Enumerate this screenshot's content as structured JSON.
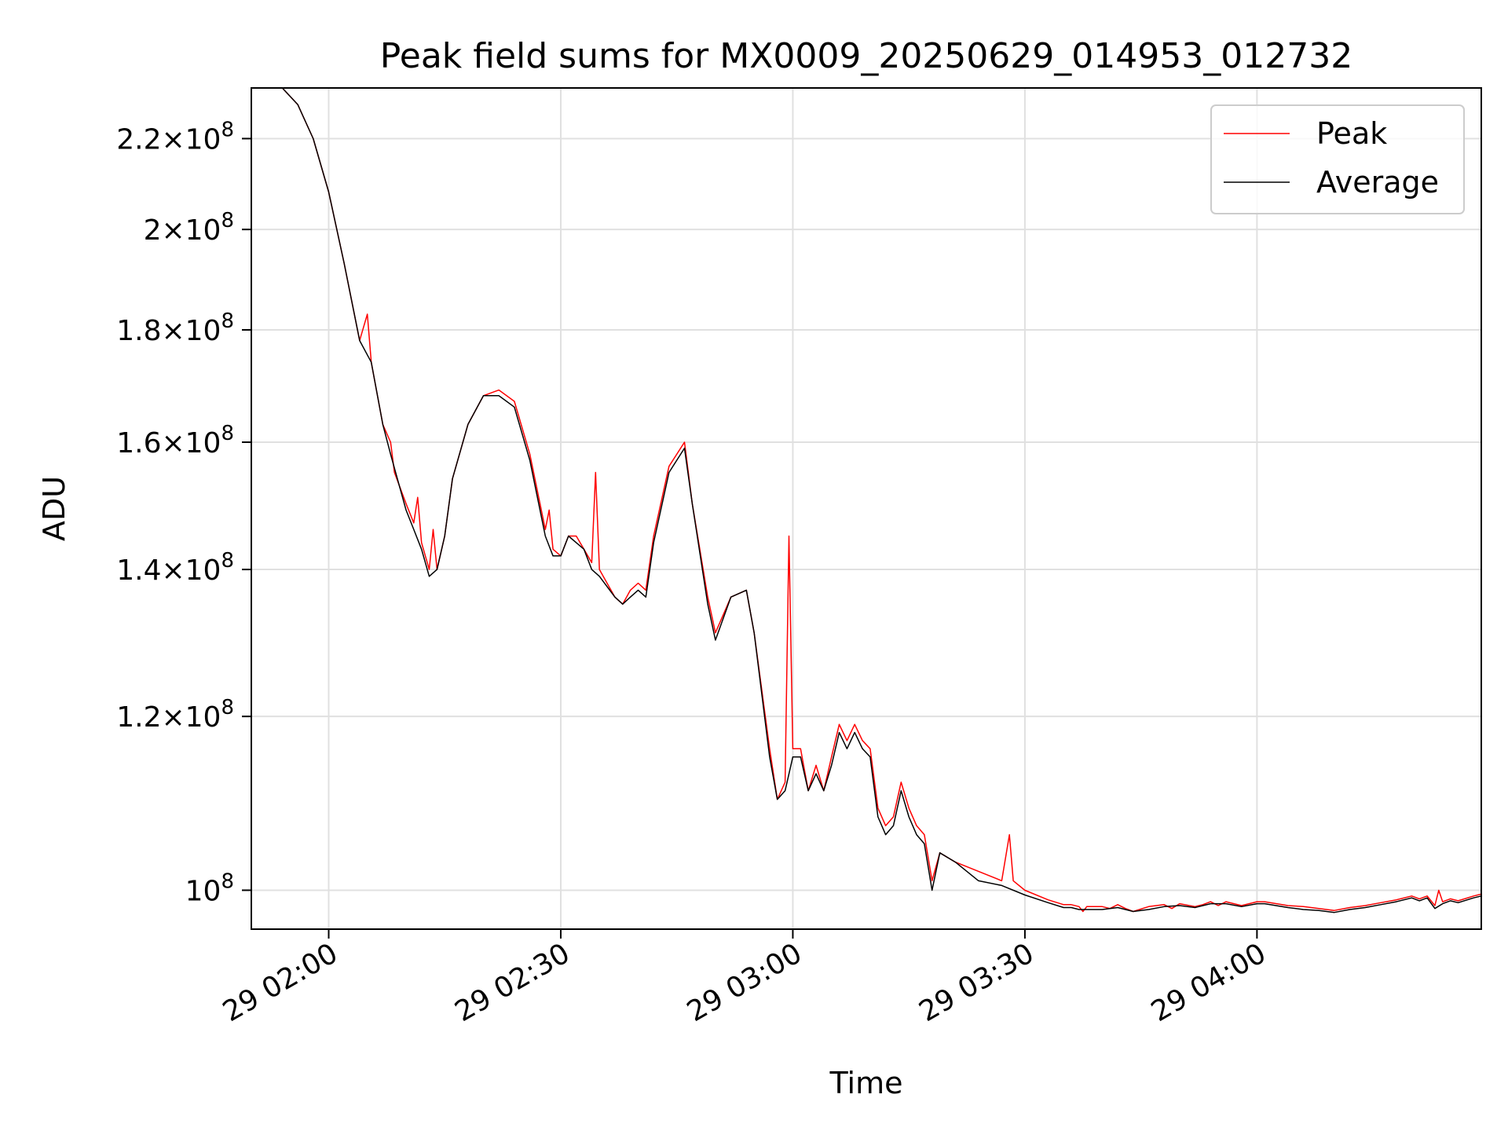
{
  "chart_data": {
    "type": "line",
    "title": "Peak field sums for MX0009_20250629_014953_012732",
    "xlabel": "Time",
    "ylabel": "ADU",
    "y_scale": "log",
    "ylim": [
      96000000,
      232000000
    ],
    "xlim": [
      "2025-06-29 01:50",
      "2025-06-29 04:29"
    ],
    "x_ticks": [
      {
        "x": "2025-06-29 02:00",
        "label": "29 02:00"
      },
      {
        "x": "2025-06-29 02:30",
        "label": "29 02:30"
      },
      {
        "x": "2025-06-29 03:00",
        "label": "29 03:00"
      },
      {
        "x": "2025-06-29 03:30",
        "label": "29 03:30"
      },
      {
        "x": "2025-06-29 04:00",
        "label": "29 04:00"
      }
    ],
    "y_ticks": [
      {
        "value": 100000000,
        "mantissa": "",
        "base": "10",
        "exp": "8"
      },
      {
        "value": 120000000,
        "mantissa": "1.2",
        "base": "10",
        "exp": "8"
      },
      {
        "value": 140000000,
        "mantissa": "1.4",
        "base": "10",
        "exp": "8"
      },
      {
        "value": 160000000,
        "mantissa": "1.6",
        "base": "10",
        "exp": "8"
      },
      {
        "value": 180000000,
        "mantissa": "1.8",
        "base": "10",
        "exp": "8"
      },
      {
        "value": 200000000,
        "mantissa": "2",
        "base": "10",
        "exp": "8"
      },
      {
        "value": 220000000,
        "mantissa": "2.2",
        "base": "10",
        "exp": "8"
      }
    ],
    "grid": true,
    "legend_position": "top-right",
    "series": [
      {
        "name": "Peak",
        "color": "#ff0000",
        "points": [
          [
            "2025-06-29 01:50",
            232000000
          ],
          [
            "2025-06-29 01:54",
            232000000
          ],
          [
            "2025-06-29 01:56",
            228000000
          ],
          [
            "2025-06-29 01:58",
            220000000
          ],
          [
            "2025-06-29 02:00",
            208000000
          ],
          [
            "2025-06-29 02:02",
            193000000
          ],
          [
            "2025-06-29 02:04",
            178000000
          ],
          [
            "2025-06-29 02:05",
            183000000
          ],
          [
            "2025-06-29 02:05:30",
            174000000
          ],
          [
            "2025-06-29 02:07",
            163000000
          ],
          [
            "2025-06-29 02:08",
            160000000
          ],
          [
            "2025-06-29 02:08:30",
            155000000
          ],
          [
            "2025-06-29 02:10",
            150000000
          ],
          [
            "2025-06-29 02:11",
            147000000
          ],
          [
            "2025-06-29 02:11:30",
            151000000
          ],
          [
            "2025-06-29 02:12",
            144000000
          ],
          [
            "2025-06-29 02:13",
            140000000
          ],
          [
            "2025-06-29 02:13:30",
            146000000
          ],
          [
            "2025-06-29 02:14",
            140000000
          ],
          [
            "2025-06-29 02:15",
            145000000
          ],
          [
            "2025-06-29 02:16",
            154000000
          ],
          [
            "2025-06-29 02:18",
            163000000
          ],
          [
            "2025-06-29 02:20",
            168000000
          ],
          [
            "2025-06-29 02:22",
            169000000
          ],
          [
            "2025-06-29 02:24",
            167000000
          ],
          [
            "2025-06-29 02:26",
            158000000
          ],
          [
            "2025-06-29 02:28",
            146000000
          ],
          [
            "2025-06-29 02:28:30",
            149000000
          ],
          [
            "2025-06-29 02:29",
            143000000
          ],
          [
            "2025-06-29 02:30",
            142000000
          ],
          [
            "2025-06-29 02:31",
            145000000
          ],
          [
            "2025-06-29 02:32",
            145000000
          ],
          [
            "2025-06-29 02:33",
            143000000
          ],
          [
            "2025-06-29 02:34",
            141000000
          ],
          [
            "2025-06-29 02:34:30",
            155000000
          ],
          [
            "2025-06-29 02:35",
            140000000
          ],
          [
            "2025-06-29 02:37",
            136000000
          ],
          [
            "2025-06-29 02:38",
            135000000
          ],
          [
            "2025-06-29 02:39",
            137000000
          ],
          [
            "2025-06-29 02:40",
            138000000
          ],
          [
            "2025-06-29 02:41",
            137000000
          ],
          [
            "2025-06-29 02:42",
            145000000
          ],
          [
            "2025-06-29 02:44",
            156000000
          ],
          [
            "2025-06-29 02:46",
            160000000
          ],
          [
            "2025-06-29 02:47",
            150000000
          ],
          [
            "2025-06-29 02:49",
            136000000
          ],
          [
            "2025-06-29 02:50",
            131000000
          ],
          [
            "2025-06-29 02:52",
            136000000
          ],
          [
            "2025-06-29 02:54",
            137000000
          ],
          [
            "2025-06-29 02:55",
            131000000
          ],
          [
            "2025-06-29 02:57",
            116000000
          ],
          [
            "2025-06-29 02:58",
            110000000
          ],
          [
            "2025-06-29 02:59",
            112000000
          ],
          [
            "2025-06-29 02:59:30",
            145000000
          ],
          [
            "2025-06-29 03:00",
            116000000
          ],
          [
            "2025-06-29 03:01",
            116000000
          ],
          [
            "2025-06-29 03:02",
            111000000
          ],
          [
            "2025-06-29 03:03",
            114000000
          ],
          [
            "2025-06-29 03:04",
            111000000
          ],
          [
            "2025-06-29 03:05",
            115000000
          ],
          [
            "2025-06-29 03:06",
            119000000
          ],
          [
            "2025-06-29 03:07",
            117000000
          ],
          [
            "2025-06-29 03:08",
            119000000
          ],
          [
            "2025-06-29 03:09",
            117000000
          ],
          [
            "2025-06-29 03:10",
            116000000
          ],
          [
            "2025-06-29 03:11",
            109000000
          ],
          [
            "2025-06-29 03:12",
            107000000
          ],
          [
            "2025-06-29 03:13",
            108000000
          ],
          [
            "2025-06-29 03:14",
            112000000
          ],
          [
            "2025-06-29 03:15",
            109000000
          ],
          [
            "2025-06-29 03:16",
            107000000
          ],
          [
            "2025-06-29 03:17",
            106000000
          ],
          [
            "2025-06-29 03:18",
            101000000
          ],
          [
            "2025-06-29 03:19",
            104000000
          ],
          [
            "2025-06-29 03:21",
            103000000
          ],
          [
            "2025-06-29 03:24",
            102000000
          ],
          [
            "2025-06-29 03:27",
            101000000
          ],
          [
            "2025-06-29 03:28",
            106000000
          ],
          [
            "2025-06-29 03:28:30",
            101000000
          ],
          [
            "2025-06-29 03:30",
            100000000
          ],
          [
            "2025-06-29 03:33",
            99000000
          ],
          [
            "2025-06-29 03:35",
            98500000
          ],
          [
            "2025-06-29 03:36",
            98500000
          ],
          [
            "2025-06-29 03:37",
            98300000
          ],
          [
            "2025-06-29 03:37:30",
            97800000
          ],
          [
            "2025-06-29 03:38",
            98300000
          ],
          [
            "2025-06-29 03:40",
            98300000
          ],
          [
            "2025-06-29 03:41",
            98100000
          ],
          [
            "2025-06-29 03:42",
            98500000
          ],
          [
            "2025-06-29 03:43",
            98100000
          ],
          [
            "2025-06-29 03:44",
            97800000
          ],
          [
            "2025-06-29 03:46",
            98300000
          ],
          [
            "2025-06-29 03:48",
            98500000
          ],
          [
            "2025-06-29 03:49",
            98100000
          ],
          [
            "2025-06-29 03:50",
            98600000
          ],
          [
            "2025-06-29 03:52",
            98300000
          ],
          [
            "2025-06-29 03:53",
            98500000
          ],
          [
            "2025-06-29 03:54",
            98800000
          ],
          [
            "2025-06-29 03:55",
            98400000
          ],
          [
            "2025-06-29 03:56",
            98800000
          ],
          [
            "2025-06-29 03:58",
            98400000
          ],
          [
            "2025-06-29 04:00",
            98800000
          ],
          [
            "2025-06-29 04:01",
            98800000
          ],
          [
            "2025-06-29 04:04",
            98400000
          ],
          [
            "2025-06-29 04:06",
            98300000
          ],
          [
            "2025-06-29 04:08",
            98100000
          ],
          [
            "2025-06-29 04:10",
            97900000
          ],
          [
            "2025-06-29 04:12",
            98200000
          ],
          [
            "2025-06-29 04:14",
            98400000
          ],
          [
            "2025-06-29 04:16",
            98700000
          ],
          [
            "2025-06-29 04:18",
            99000000
          ],
          [
            "2025-06-29 04:20",
            99400000
          ],
          [
            "2025-06-29 04:21",
            99100000
          ],
          [
            "2025-06-29 04:22",
            99400000
          ],
          [
            "2025-06-29 04:23",
            98400000
          ],
          [
            "2025-06-29 04:23:30",
            100000000
          ],
          [
            "2025-06-29 04:24",
            98800000
          ],
          [
            "2025-06-29 04:25",
            99100000
          ],
          [
            "2025-06-29 04:26",
            98900000
          ],
          [
            "2025-06-29 04:28",
            99400000
          ],
          [
            "2025-06-29 04:29",
            99600000
          ]
        ]
      },
      {
        "name": "Average",
        "color": "#000000",
        "points": [
          [
            "2025-06-29 01:50",
            232000000
          ],
          [
            "2025-06-29 01:54",
            232000000
          ],
          [
            "2025-06-29 01:56",
            228000000
          ],
          [
            "2025-06-29 01:58",
            220000000
          ],
          [
            "2025-06-29 02:00",
            208000000
          ],
          [
            "2025-06-29 02:02",
            193000000
          ],
          [
            "2025-06-29 02:04",
            178000000
          ],
          [
            "2025-06-29 02:05:30",
            174000000
          ],
          [
            "2025-06-29 02:07",
            163000000
          ],
          [
            "2025-06-29 02:08",
            158000000
          ],
          [
            "2025-06-29 02:10",
            149000000
          ],
          [
            "2025-06-29 02:11",
            146000000
          ],
          [
            "2025-06-29 02:12",
            143000000
          ],
          [
            "2025-06-29 02:13",
            139000000
          ],
          [
            "2025-06-29 02:14",
            140000000
          ],
          [
            "2025-06-29 02:15",
            145000000
          ],
          [
            "2025-06-29 02:16",
            154000000
          ],
          [
            "2025-06-29 02:18",
            163000000
          ],
          [
            "2025-06-29 02:20",
            168000000
          ],
          [
            "2025-06-29 02:22",
            168000000
          ],
          [
            "2025-06-29 02:24",
            166000000
          ],
          [
            "2025-06-29 02:26",
            157000000
          ],
          [
            "2025-06-29 02:28",
            145000000
          ],
          [
            "2025-06-29 02:29",
            142000000
          ],
          [
            "2025-06-29 02:30",
            142000000
          ],
          [
            "2025-06-29 02:31",
            145000000
          ],
          [
            "2025-06-29 02:32",
            144000000
          ],
          [
            "2025-06-29 02:33",
            143000000
          ],
          [
            "2025-06-29 02:34",
            140000000
          ],
          [
            "2025-06-29 02:35",
            139000000
          ],
          [
            "2025-06-29 02:37",
            136000000
          ],
          [
            "2025-06-29 02:38",
            135000000
          ],
          [
            "2025-06-29 02:39",
            136000000
          ],
          [
            "2025-06-29 02:40",
            137000000
          ],
          [
            "2025-06-29 02:41",
            136000000
          ],
          [
            "2025-06-29 02:42",
            144000000
          ],
          [
            "2025-06-29 02:44",
            155000000
          ],
          [
            "2025-06-29 02:46",
            159000000
          ],
          [
            "2025-06-29 02:47",
            150000000
          ],
          [
            "2025-06-29 02:49",
            135000000
          ],
          [
            "2025-06-29 02:50",
            130000000
          ],
          [
            "2025-06-29 02:52",
            136000000
          ],
          [
            "2025-06-29 02:54",
            137000000
          ],
          [
            "2025-06-29 02:55",
            131000000
          ],
          [
            "2025-06-29 02:57",
            115000000
          ],
          [
            "2025-06-29 02:58",
            110000000
          ],
          [
            "2025-06-29 02:59",
            111000000
          ],
          [
            "2025-06-29 03:00",
            115000000
          ],
          [
            "2025-06-29 03:01",
            115000000
          ],
          [
            "2025-06-29 03:02",
            111000000
          ],
          [
            "2025-06-29 03:03",
            113000000
          ],
          [
            "2025-06-29 03:04",
            111000000
          ],
          [
            "2025-06-29 03:05",
            114000000
          ],
          [
            "2025-06-29 03:06",
            118000000
          ],
          [
            "2025-06-29 03:07",
            116000000
          ],
          [
            "2025-06-29 03:08",
            118000000
          ],
          [
            "2025-06-29 03:09",
            116000000
          ],
          [
            "2025-06-29 03:10",
            115000000
          ],
          [
            "2025-06-29 03:11",
            108000000
          ],
          [
            "2025-06-29 03:12",
            106000000
          ],
          [
            "2025-06-29 03:13",
            107000000
          ],
          [
            "2025-06-29 03:14",
            111000000
          ],
          [
            "2025-06-29 03:15",
            108000000
          ],
          [
            "2025-06-29 03:16",
            106000000
          ],
          [
            "2025-06-29 03:17",
            105000000
          ],
          [
            "2025-06-29 03:18",
            100000000
          ],
          [
            "2025-06-29 03:19",
            104000000
          ],
          [
            "2025-06-29 03:21",
            103000000
          ],
          [
            "2025-06-29 03:24",
            101000000
          ],
          [
            "2025-06-29 03:27",
            100500000
          ],
          [
            "2025-06-29 03:30",
            99500000
          ],
          [
            "2025-06-29 03:33",
            98700000
          ],
          [
            "2025-06-29 03:35",
            98200000
          ],
          [
            "2025-06-29 03:36",
            98200000
          ],
          [
            "2025-06-29 03:37",
            98000000
          ],
          [
            "2025-06-29 03:38",
            98000000
          ],
          [
            "2025-06-29 03:40",
            98000000
          ],
          [
            "2025-06-29 03:42",
            98200000
          ],
          [
            "2025-06-29 03:44",
            97800000
          ],
          [
            "2025-06-29 03:46",
            98000000
          ],
          [
            "2025-06-29 03:48",
            98300000
          ],
          [
            "2025-06-29 03:50",
            98400000
          ],
          [
            "2025-06-29 03:52",
            98200000
          ],
          [
            "2025-06-29 03:54",
            98600000
          ],
          [
            "2025-06-29 03:56",
            98600000
          ],
          [
            "2025-06-29 03:58",
            98300000
          ],
          [
            "2025-06-29 04:00",
            98600000
          ],
          [
            "2025-06-29 04:01",
            98600000
          ],
          [
            "2025-06-29 04:04",
            98200000
          ],
          [
            "2025-06-29 04:06",
            98000000
          ],
          [
            "2025-06-29 04:08",
            97900000
          ],
          [
            "2025-06-29 04:10",
            97700000
          ],
          [
            "2025-06-29 04:12",
            98000000
          ],
          [
            "2025-06-29 04:14",
            98200000
          ],
          [
            "2025-06-29 04:16",
            98500000
          ],
          [
            "2025-06-29 04:18",
            98800000
          ],
          [
            "2025-06-29 04:20",
            99200000
          ],
          [
            "2025-06-29 04:21",
            98900000
          ],
          [
            "2025-06-29 04:22",
            99200000
          ],
          [
            "2025-06-29 04:23",
            98100000
          ],
          [
            "2025-06-29 04:24",
            98600000
          ],
          [
            "2025-06-29 04:25",
            98900000
          ],
          [
            "2025-06-29 04:26",
            98700000
          ],
          [
            "2025-06-29 04:28",
            99200000
          ],
          [
            "2025-06-29 04:29",
            99400000
          ]
        ]
      }
    ]
  }
}
